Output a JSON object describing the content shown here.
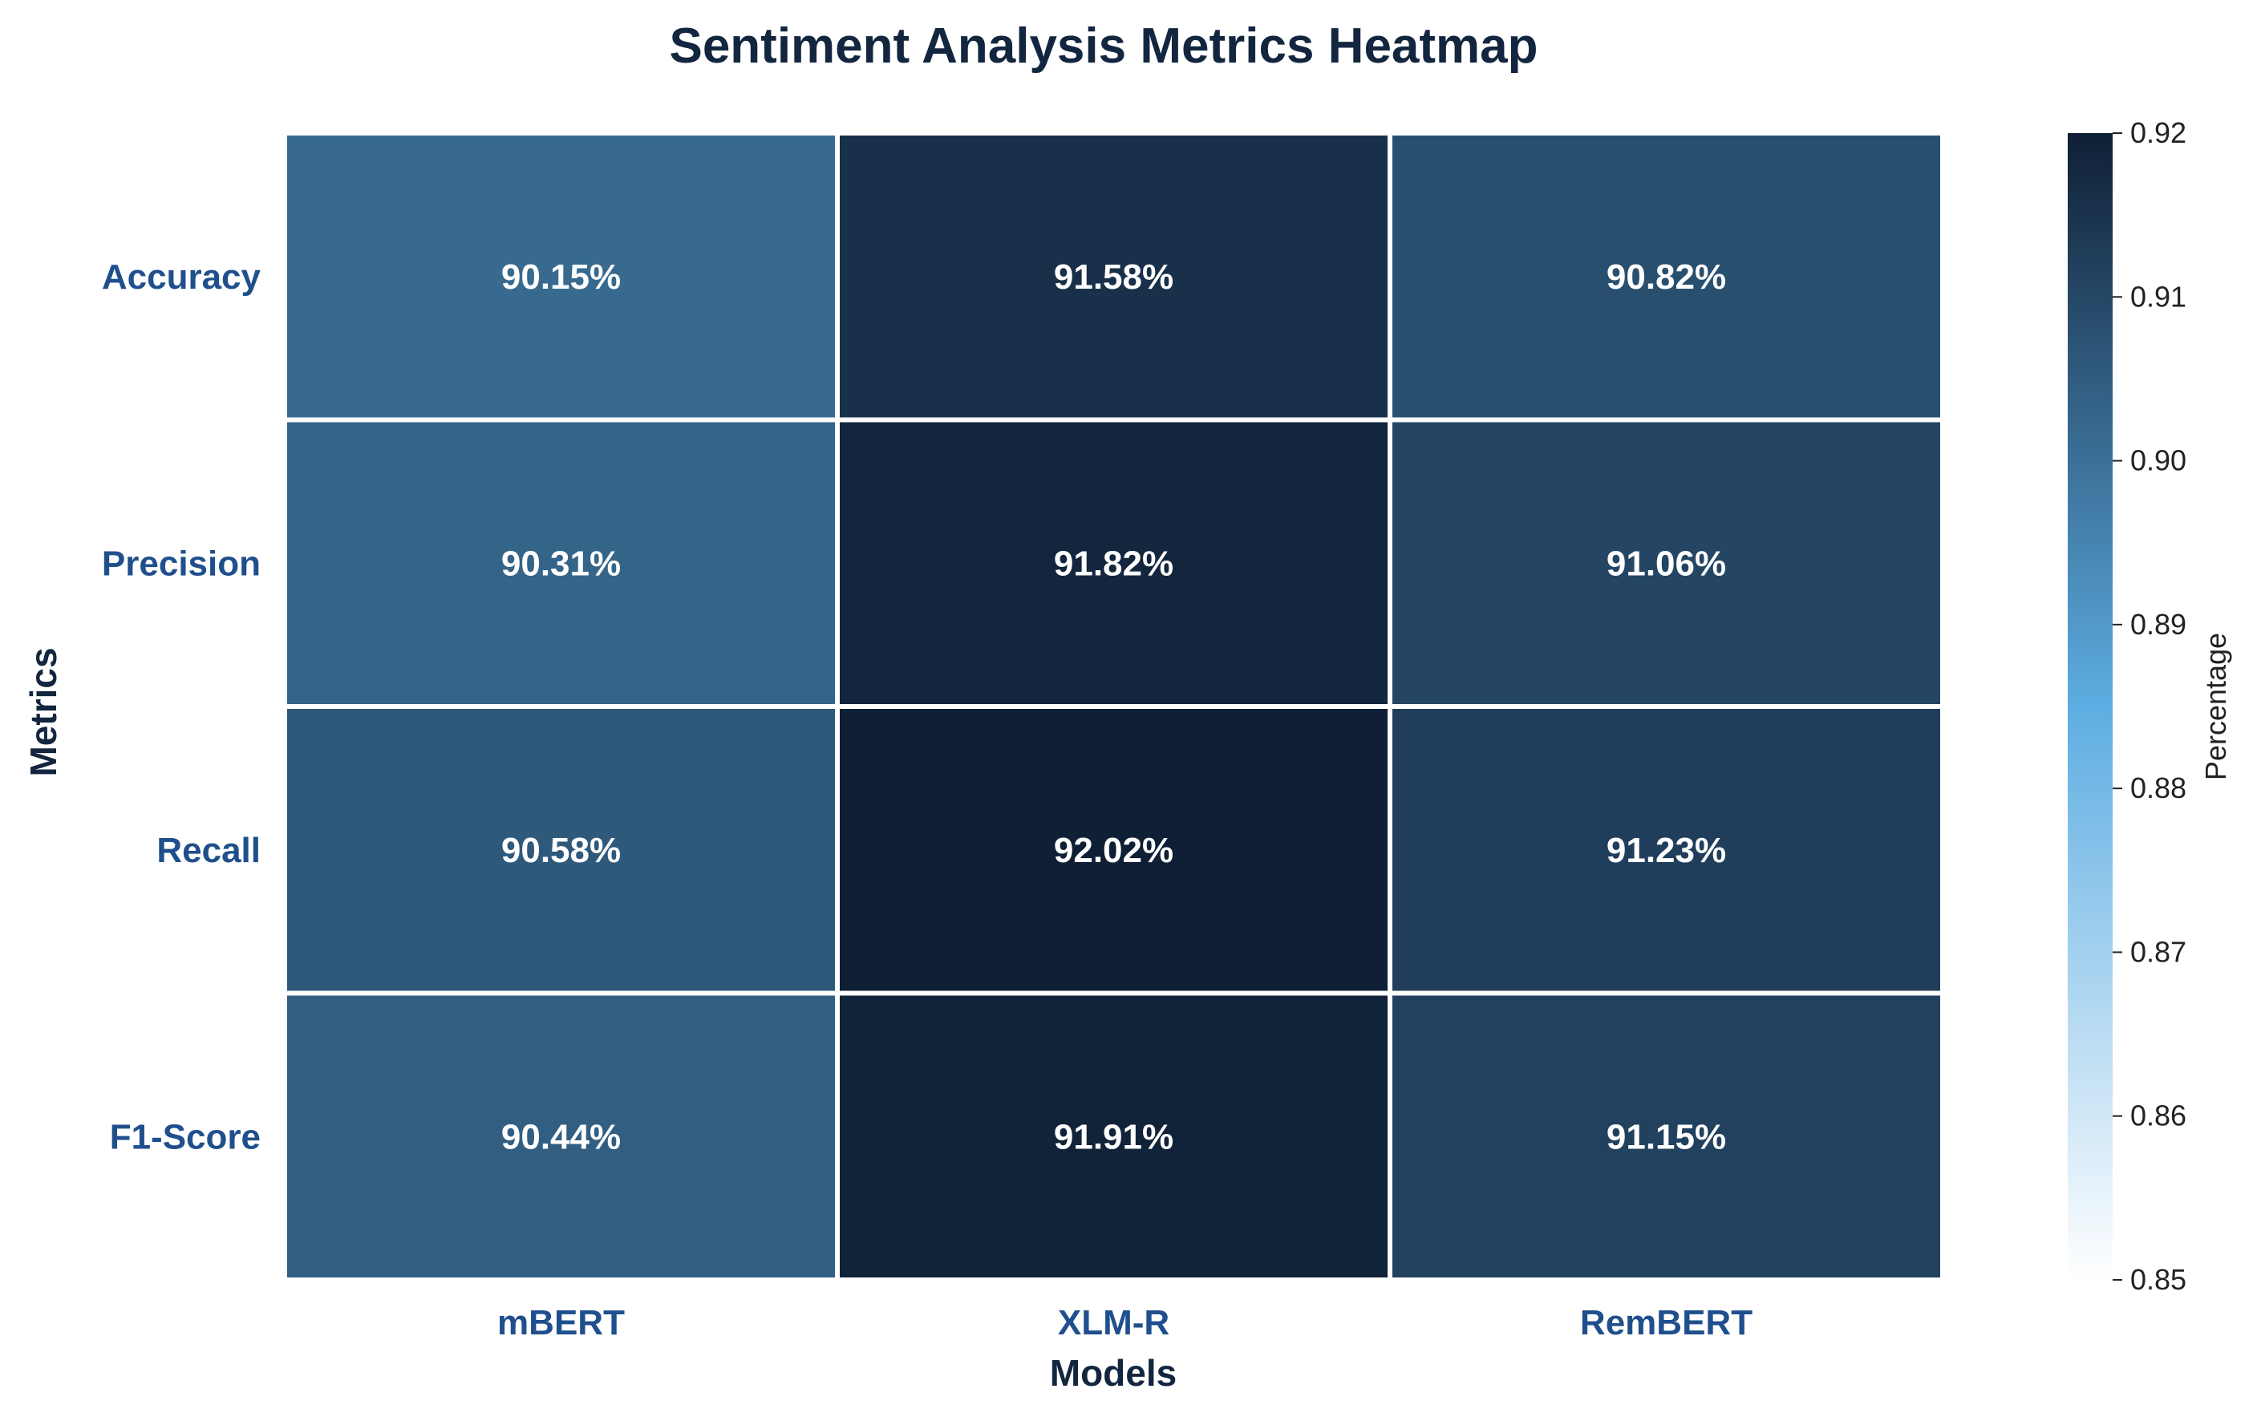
{
  "chart_data": {
    "type": "heatmap",
    "title": "Sentiment Analysis Metrics Heatmap",
    "xlabel": "Models",
    "ylabel": "Metrics",
    "x_categories": [
      "mBERT",
      "XLM-R",
      "RemBERT"
    ],
    "y_categories": [
      "Accuracy",
      "Precision",
      "Recall",
      "F1-Score"
    ],
    "values": [
      [
        0.9015,
        0.9158,
        0.9082
      ],
      [
        0.9031,
        0.9182,
        0.9106
      ],
      [
        0.9058,
        0.9202,
        0.9123
      ],
      [
        0.9044,
        0.9191,
        0.9115
      ]
    ],
    "cell_labels": [
      [
        "90.15%",
        "91.58%",
        "90.82%"
      ],
      [
        "90.31%",
        "91.82%",
        "91.06%"
      ],
      [
        "90.58%",
        "92.02%",
        "91.23%"
      ],
      [
        "90.44%",
        "91.91%",
        "91.15%"
      ]
    ],
    "colorbar": {
      "label": "Percentage",
      "vmin": 0.85,
      "vmax": 0.92,
      "ticks": [
        "0.85",
        "0.86",
        "0.87",
        "0.88",
        "0.89",
        "0.90",
        "0.91",
        "0.92"
      ],
      "colormap": [
        "#ffffff",
        "#5dade2",
        "#0f1f35"
      ]
    },
    "grid": false,
    "legend": "colorbar-right"
  }
}
